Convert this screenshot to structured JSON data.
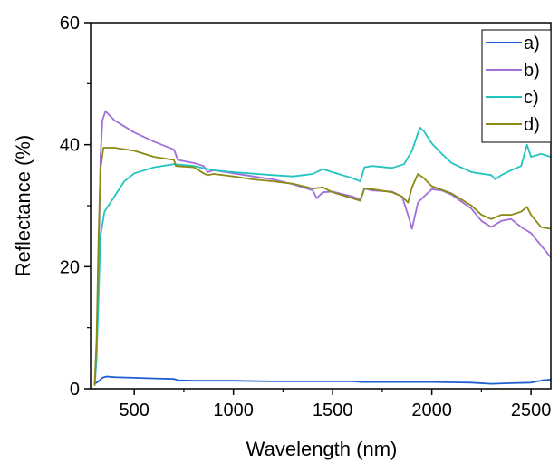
{
  "chart_data": {
    "type": "line",
    "xlabel": "Wavelength (nm)",
    "ylabel": "Reflectance (%)",
    "xlim": [
      280,
      2600
    ],
    "ylim": [
      0,
      60
    ],
    "xticks": [
      500,
      1000,
      1500,
      2000,
      2500
    ],
    "yticks": [
      0,
      20,
      40,
      60
    ],
    "grid": false,
    "legend": "top-right",
    "series": [
      {
        "name": "a)",
        "color": "#1f5fd1",
        "points": [
          [
            300,
            0.8
          ],
          [
            320,
            1.2
          ],
          [
            340,
            1.8
          ],
          [
            360,
            2.0
          ],
          [
            400,
            1.9
          ],
          [
            500,
            1.8
          ],
          [
            600,
            1.7
          ],
          [
            700,
            1.6
          ],
          [
            720,
            1.4
          ],
          [
            800,
            1.3
          ],
          [
            900,
            1.3
          ],
          [
            1000,
            1.3
          ],
          [
            1200,
            1.2
          ],
          [
            1400,
            1.2
          ],
          [
            1600,
            1.2
          ],
          [
            1650,
            1.1
          ],
          [
            1800,
            1.1
          ],
          [
            1900,
            1.1
          ],
          [
            2000,
            1.1
          ],
          [
            2200,
            1.0
          ],
          [
            2300,
            0.8
          ],
          [
            2400,
            0.9
          ],
          [
            2500,
            1.0
          ],
          [
            2560,
            1.4
          ],
          [
            2600,
            1.5
          ]
        ]
      },
      {
        "name": "b)",
        "color": "#a070d8",
        "points": [
          [
            300,
            0.5
          ],
          [
            310,
            5
          ],
          [
            320,
            20
          ],
          [
            330,
            38
          ],
          [
            340,
            44
          ],
          [
            355,
            45.5
          ],
          [
            370,
            45
          ],
          [
            400,
            44
          ],
          [
            500,
            42
          ],
          [
            600,
            40.5
          ],
          [
            700,
            39.2
          ],
          [
            720,
            37.5
          ],
          [
            800,
            37
          ],
          [
            850,
            36.5
          ],
          [
            870,
            35.5
          ],
          [
            900,
            35.8
          ],
          [
            1000,
            35.3
          ],
          [
            1100,
            34.8
          ],
          [
            1200,
            34.3
          ],
          [
            1300,
            33.5
          ],
          [
            1400,
            32.5
          ],
          [
            1420,
            31.2
          ],
          [
            1450,
            32.2
          ],
          [
            1500,
            32.3
          ],
          [
            1600,
            31.5
          ],
          [
            1640,
            31
          ],
          [
            1660,
            32.8
          ],
          [
            1700,
            32.5
          ],
          [
            1800,
            32.3
          ],
          [
            1850,
            31.5
          ],
          [
            1880,
            28.5
          ],
          [
            1900,
            26.2
          ],
          [
            1930,
            30.5
          ],
          [
            1960,
            31.5
          ],
          [
            2000,
            32.7
          ],
          [
            2050,
            32.5
          ],
          [
            2100,
            31.8
          ],
          [
            2200,
            29.5
          ],
          [
            2250,
            27.5
          ],
          [
            2300,
            26.5
          ],
          [
            2350,
            27.5
          ],
          [
            2400,
            27.8
          ],
          [
            2450,
            26.5
          ],
          [
            2500,
            25.5
          ],
          [
            2550,
            23.5
          ],
          [
            2600,
            21.5
          ]
        ]
      },
      {
        "name": "c)",
        "color": "#22c4c0",
        "points": [
          [
            300,
            0.5
          ],
          [
            310,
            5
          ],
          [
            320,
            15
          ],
          [
            330,
            25
          ],
          [
            350,
            29
          ],
          [
            400,
            31.5
          ],
          [
            450,
            34
          ],
          [
            500,
            35.3
          ],
          [
            600,
            36.3
          ],
          [
            700,
            36.8
          ],
          [
            800,
            36.5
          ],
          [
            900,
            35.8
          ],
          [
            1000,
            35.5
          ],
          [
            1200,
            35
          ],
          [
            1300,
            34.8
          ],
          [
            1400,
            35.2
          ],
          [
            1450,
            36
          ],
          [
            1500,
            35.5
          ],
          [
            1600,
            34.5
          ],
          [
            1640,
            34
          ],
          [
            1660,
            36.3
          ],
          [
            1700,
            36.5
          ],
          [
            1800,
            36.2
          ],
          [
            1860,
            36.8
          ],
          [
            1900,
            39
          ],
          [
            1940,
            42.8
          ],
          [
            1960,
            42.2
          ],
          [
            2000,
            40.2
          ],
          [
            2050,
            38.5
          ],
          [
            2100,
            37
          ],
          [
            2200,
            35.5
          ],
          [
            2300,
            35
          ],
          [
            2320,
            34.3
          ],
          [
            2350,
            35
          ],
          [
            2400,
            35.8
          ],
          [
            2450,
            36.5
          ],
          [
            2480,
            40
          ],
          [
            2500,
            38
          ],
          [
            2550,
            38.5
          ],
          [
            2600,
            38
          ]
        ]
      },
      {
        "name": "d)",
        "color": "#8a8a14",
        "points": [
          [
            300,
            0.5
          ],
          [
            310,
            8
          ],
          [
            320,
            25
          ],
          [
            330,
            36
          ],
          [
            345,
            39.5
          ],
          [
            400,
            39.5
          ],
          [
            500,
            39
          ],
          [
            600,
            38
          ],
          [
            700,
            37.5
          ],
          [
            710,
            36.5
          ],
          [
            800,
            36.3
          ],
          [
            850,
            35.3
          ],
          [
            870,
            35
          ],
          [
            900,
            35.2
          ],
          [
            1000,
            34.8
          ],
          [
            1100,
            34.3
          ],
          [
            1200,
            34
          ],
          [
            1300,
            33.6
          ],
          [
            1400,
            32.8
          ],
          [
            1450,
            33
          ],
          [
            1500,
            32.2
          ],
          [
            1600,
            31.2
          ],
          [
            1640,
            30.8
          ],
          [
            1660,
            32.8
          ],
          [
            1700,
            32.7
          ],
          [
            1800,
            32.2
          ],
          [
            1850,
            31.5
          ],
          [
            1880,
            30.5
          ],
          [
            1900,
            33
          ],
          [
            1930,
            35.2
          ],
          [
            1960,
            34.5
          ],
          [
            2000,
            33.2
          ],
          [
            2100,
            32
          ],
          [
            2200,
            30
          ],
          [
            2250,
            28.5
          ],
          [
            2300,
            27.8
          ],
          [
            2350,
            28.5
          ],
          [
            2400,
            28.5
          ],
          [
            2450,
            29
          ],
          [
            2480,
            29.8
          ],
          [
            2500,
            28.5
          ],
          [
            2550,
            26.5
          ],
          [
            2600,
            26.2
          ]
        ]
      }
    ]
  }
}
